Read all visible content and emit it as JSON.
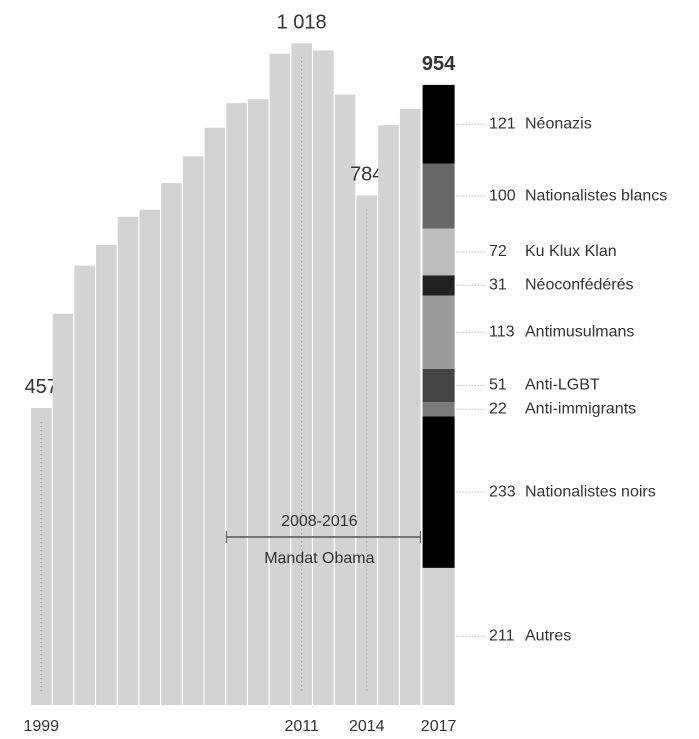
{
  "chart_data": {
    "type": "bar",
    "categories": [
      "1999",
      null,
      null,
      null,
      null,
      null,
      null,
      null,
      null,
      null,
      null,
      null,
      "2011",
      null,
      null,
      "2014",
      null,
      null,
      "2017"
    ],
    "values": [
      457,
      602,
      676,
      708,
      751,
      762,
      803,
      844,
      888,
      926,
      932,
      1002,
      1018,
      1007,
      939,
      784,
      892,
      917,
      954
    ],
    "value_labels": [
      "457",
      null,
      null,
      null,
      null,
      null,
      null,
      null,
      null,
      null,
      null,
      null,
      "1 018",
      null,
      null,
      "784",
      null,
      null,
      "954"
    ],
    "color": "#d3d3d3",
    "ylim": [
      0,
      1080
    ],
    "stack": [
      {
        "name": "Néonazis",
        "value": 121,
        "color": "#000000"
      },
      {
        "name": "Nationalistes blancs",
        "value": 100,
        "color": "#666666"
      },
      {
        "name": "Ku Klux Klan",
        "value": 72,
        "color": "#bdbdbd"
      },
      {
        "name": "Néoconfédérés",
        "value": 31,
        "color": "#222222"
      },
      {
        "name": "Antimusulmans",
        "value": 113,
        "color": "#9a9a9a"
      },
      {
        "name": "Anti-LGBT",
        "value": 51,
        "color": "#444444"
      },
      {
        "name": "Anti-immigrants",
        "value": 22,
        "color": "#7a7a7a"
      },
      {
        "name": "Nationalistes noirs",
        "value": 233,
        "color": "#000000"
      },
      {
        "name": "Autres",
        "value": 211,
        "color": "#d3d3d3"
      }
    ],
    "annotations": [
      "2008-2016",
      "Mandat Obama"
    ]
  }
}
